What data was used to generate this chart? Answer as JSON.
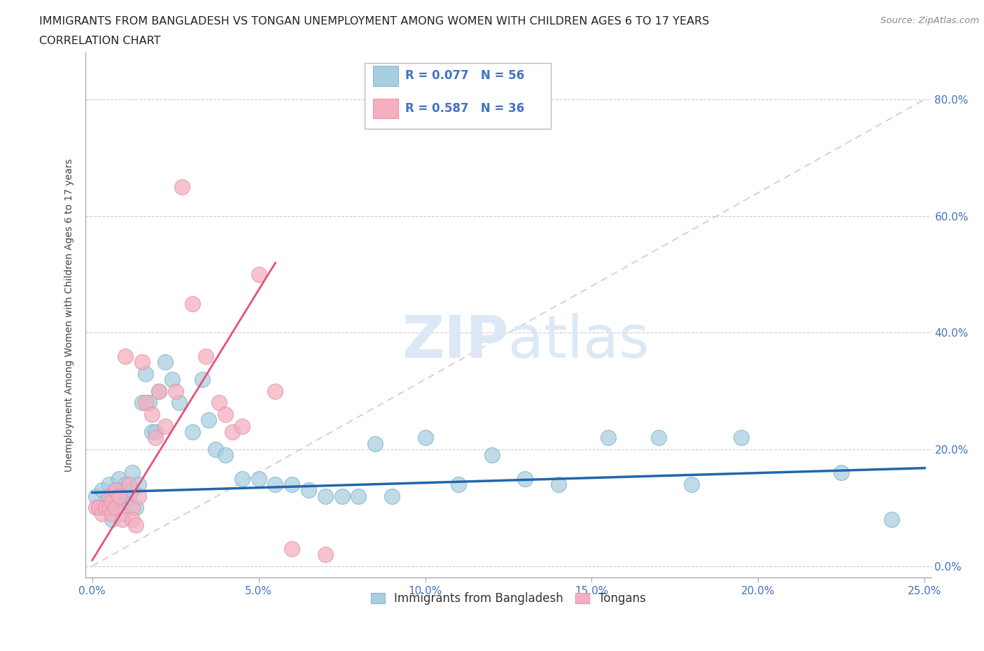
{
  "title_line1": "IMMIGRANTS FROM BANGLADESH VS TONGAN UNEMPLOYMENT AMONG WOMEN WITH CHILDREN AGES 6 TO 17 YEARS",
  "title_line2": "CORRELATION CHART",
  "source": "Source: ZipAtlas.com",
  "xlabel_ticks": [
    "0.0%",
    "5.0%",
    "10.0%",
    "15.0%",
    "20.0%",
    "25.0%"
  ],
  "xlabel_values": [
    0.0,
    0.05,
    0.1,
    0.15,
    0.2,
    0.25
  ],
  "ylabel_ticks": [
    "0.0%",
    "20.0%",
    "40.0%",
    "60.0%",
    "80.0%"
  ],
  "ylabel_values": [
    0.0,
    0.2,
    0.4,
    0.6,
    0.8
  ],
  "ylabel_label": "Unemployment Among Women with Children Ages 6 to 17 years",
  "xlim": [
    -0.002,
    0.252
  ],
  "ylim": [
    -0.02,
    0.88
  ],
  "bangladesh_R": "0.077",
  "bangladesh_N": "56",
  "tongan_R": "0.587",
  "tongan_N": "36",
  "bangladesh_color": "#a8cfe0",
  "tongan_color": "#f4afc0",
  "bangladesh_line_color": "#2166ac",
  "tongan_line_color": "#e8507a",
  "diagonal_color": "#d0b8b8",
  "background_color": "#ffffff",
  "grid_color": "#cccccc",
  "watermark_text": "ZIPatlas",
  "watermark_color": "#dce8f5",
  "legend_text_color_blue": "#4472c4",
  "legend_text_color_black": "#222222",
  "bangladesh_points": [
    [
      0.001,
      0.12
    ],
    [
      0.002,
      0.1
    ],
    [
      0.003,
      0.13
    ],
    [
      0.004,
      0.11
    ],
    [
      0.005,
      0.14
    ],
    [
      0.005,
      0.1
    ],
    [
      0.006,
      0.12
    ],
    [
      0.006,
      0.08
    ],
    [
      0.007,
      0.13
    ],
    [
      0.007,
      0.1
    ],
    [
      0.008,
      0.15
    ],
    [
      0.008,
      0.11
    ],
    [
      0.009,
      0.13
    ],
    [
      0.009,
      0.09
    ],
    [
      0.01,
      0.14
    ],
    [
      0.01,
      0.11
    ],
    [
      0.011,
      0.12
    ],
    [
      0.012,
      0.16
    ],
    [
      0.012,
      0.13
    ],
    [
      0.013,
      0.1
    ],
    [
      0.014,
      0.14
    ],
    [
      0.015,
      0.28
    ],
    [
      0.016,
      0.33
    ],
    [
      0.017,
      0.28
    ],
    [
      0.018,
      0.23
    ],
    [
      0.019,
      0.23
    ],
    [
      0.02,
      0.3
    ],
    [
      0.022,
      0.35
    ],
    [
      0.024,
      0.32
    ],
    [
      0.026,
      0.28
    ],
    [
      0.03,
      0.23
    ],
    [
      0.033,
      0.32
    ],
    [
      0.035,
      0.25
    ],
    [
      0.037,
      0.2
    ],
    [
      0.04,
      0.19
    ],
    [
      0.045,
      0.15
    ],
    [
      0.05,
      0.15
    ],
    [
      0.055,
      0.14
    ],
    [
      0.06,
      0.14
    ],
    [
      0.065,
      0.13
    ],
    [
      0.07,
      0.12
    ],
    [
      0.075,
      0.12
    ],
    [
      0.08,
      0.12
    ],
    [
      0.085,
      0.21
    ],
    [
      0.09,
      0.12
    ],
    [
      0.1,
      0.22
    ],
    [
      0.11,
      0.14
    ],
    [
      0.12,
      0.19
    ],
    [
      0.13,
      0.15
    ],
    [
      0.14,
      0.14
    ],
    [
      0.155,
      0.22
    ],
    [
      0.17,
      0.22
    ],
    [
      0.18,
      0.14
    ],
    [
      0.195,
      0.22
    ],
    [
      0.225,
      0.16
    ],
    [
      0.24,
      0.08
    ]
  ],
  "tongan_points": [
    [
      0.001,
      0.1
    ],
    [
      0.002,
      0.1
    ],
    [
      0.003,
      0.09
    ],
    [
      0.004,
      0.1
    ],
    [
      0.005,
      0.12
    ],
    [
      0.005,
      0.1
    ],
    [
      0.006,
      0.11
    ],
    [
      0.006,
      0.09
    ],
    [
      0.007,
      0.13
    ],
    [
      0.007,
      0.1
    ],
    [
      0.008,
      0.12
    ],
    [
      0.009,
      0.08
    ],
    [
      0.01,
      0.36
    ],
    [
      0.011,
      0.14
    ],
    [
      0.012,
      0.1
    ],
    [
      0.012,
      0.08
    ],
    [
      0.013,
      0.07
    ],
    [
      0.014,
      0.12
    ],
    [
      0.015,
      0.35
    ],
    [
      0.016,
      0.28
    ],
    [
      0.018,
      0.26
    ],
    [
      0.019,
      0.22
    ],
    [
      0.02,
      0.3
    ],
    [
      0.022,
      0.24
    ],
    [
      0.025,
      0.3
    ],
    [
      0.027,
      0.65
    ],
    [
      0.03,
      0.45
    ],
    [
      0.034,
      0.36
    ],
    [
      0.038,
      0.28
    ],
    [
      0.04,
      0.26
    ],
    [
      0.042,
      0.23
    ],
    [
      0.045,
      0.24
    ],
    [
      0.05,
      0.5
    ],
    [
      0.055,
      0.3
    ],
    [
      0.06,
      0.03
    ],
    [
      0.07,
      0.02
    ]
  ]
}
